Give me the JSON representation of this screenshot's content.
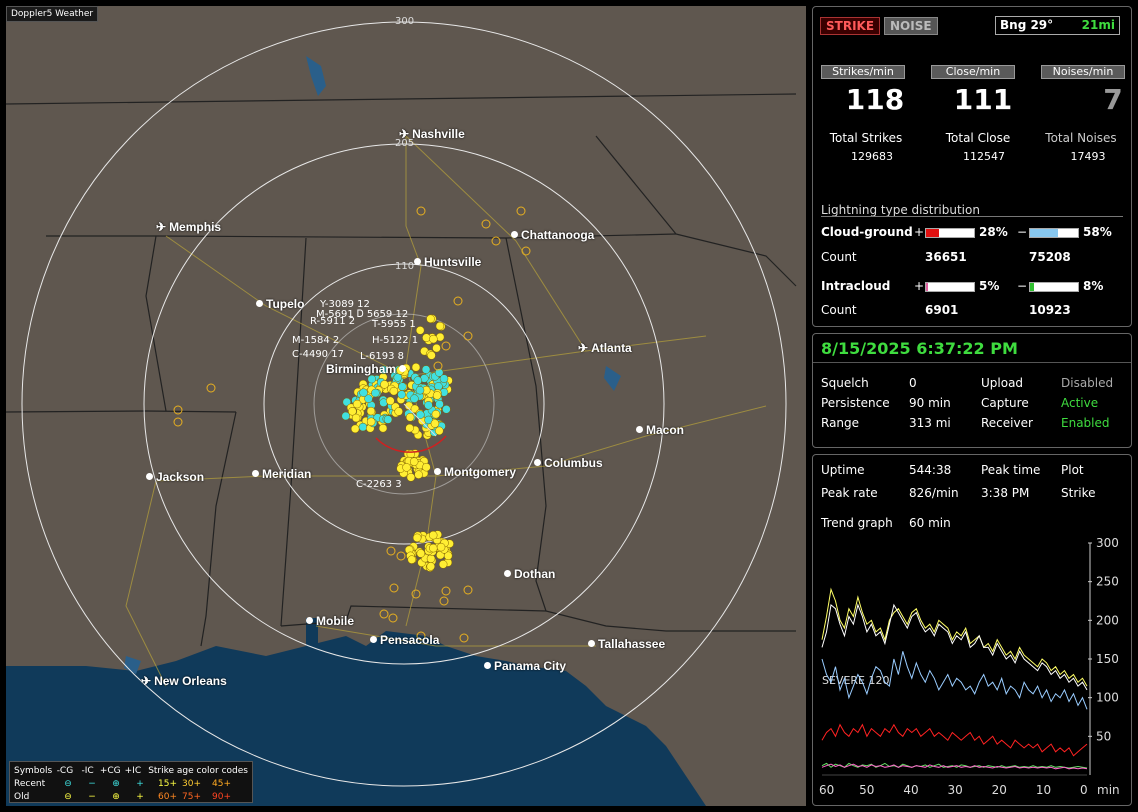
{
  "app_title": "Doppler5 Weather",
  "map": {
    "ring_labels": [
      "300",
      "205",
      "110"
    ],
    "cities": [
      {
        "name": "Nashville",
        "icon": "plane"
      },
      {
        "name": "Memphis",
        "icon": "plane"
      },
      {
        "name": "Chattanooga",
        "icon": "dot"
      },
      {
        "name": "Huntsville",
        "icon": "dot"
      },
      {
        "name": "Tupelo",
        "icon": "dot"
      },
      {
        "name": "Atlanta",
        "icon": "plane"
      },
      {
        "name": "Birmingham",
        "icon": "dot"
      },
      {
        "name": "Macon",
        "icon": "dot"
      },
      {
        "name": "Jackson",
        "icon": "dot"
      },
      {
        "name": "Meridian",
        "icon": "dot"
      },
      {
        "name": "Montgomery",
        "icon": "dot"
      },
      {
        "name": "Columbus",
        "icon": "dot"
      },
      {
        "name": "Dothan",
        "icon": "dot"
      },
      {
        "name": "Mobile",
        "icon": "dot"
      },
      {
        "name": "Pensacola",
        "icon": "dot"
      },
      {
        "name": "Tallahassee",
        "icon": "dot"
      },
      {
        "name": "Panama City",
        "icon": "dot"
      },
      {
        "name": "New Orleans",
        "icon": "plane"
      }
    ],
    "storm_labels": [
      "Y-3089 12",
      "M-5691 Ꭰ 5659 12",
      "R-5911 2",
      "T-5955 1",
      "M-1584 2",
      "H-5122 1",
      "C-4490 17",
      "L-6193 8",
      "C-2263 3"
    ]
  },
  "legend": {
    "row_header": [
      "Symbols",
      "-CG",
      "-IC",
      "+CG",
      "+IC",
      "Strike age color codes"
    ],
    "recent": {
      "label": "Recent",
      "symbols": [
        "⊖",
        "−",
        "⊕",
        "+"
      ],
      "ages": [
        "15+",
        "30+",
        "45+"
      ]
    },
    "old": {
      "label": "Old",
      "symbols": [
        "⊖",
        "−",
        "⊕",
        "+"
      ],
      "ages": [
        "60+",
        "75+",
        "90+"
      ]
    }
  },
  "header": {
    "strike_tab": "STRIKE",
    "noise_tab": "NOISE",
    "bearing": "Bng 29°",
    "range": "21mi"
  },
  "rates": [
    {
      "label": "Strikes/min",
      "value": "118",
      "total_label": "Total Strikes",
      "total": "129683"
    },
    {
      "label": "Close/min",
      "value": "111",
      "total_label": "Total Close",
      "total": "112547"
    },
    {
      "label": "Noises/min",
      "value": "7",
      "total_label": "Total Noises",
      "total": "17493"
    }
  ],
  "distribution": {
    "title": "Lightning type distribution",
    "cloud_ground": {
      "label": "Cloud-ground",
      "pos_pct": "28%",
      "neg_pct": "58%",
      "pos": 0.28,
      "neg": 0.58,
      "count_label": "Count",
      "pos_count": "36651",
      "neg_count": "75208"
    },
    "intracloud": {
      "label": "Intracloud",
      "pos_pct": "5%",
      "neg_pct": "8%",
      "pos": 0.05,
      "neg": 0.08,
      "count_label": "Count",
      "pos_count": "6901",
      "neg_count": "10923"
    },
    "plus": "+",
    "minus": "−"
  },
  "status": {
    "datetime": "8/15/2025 6:37:22 PM",
    "squelch_label": "Squelch",
    "squelch": "0",
    "persistence_label": "Persistence",
    "persistence": "90 min",
    "range_label": "Range",
    "range": "313 mi",
    "upload_label": "Upload",
    "upload": "Disabled",
    "capture_label": "Capture",
    "capture": "Active",
    "receiver_label": "Receiver",
    "receiver": "Enabled"
  },
  "stats": {
    "uptime_label": "Uptime",
    "uptime": "544:38",
    "peak_time_label": "Peak time",
    "peak_time": "3:38 PM",
    "plot_label": "Plot",
    "plot": "Strike",
    "peak_rate_label": "Peak rate",
    "peak_rate": "826/min",
    "trend_label": "Trend graph",
    "trend_window": "60 min"
  },
  "chart_data": {
    "type": "line",
    "title": "",
    "xlabel": "min",
    "x_ticks": [
      "60",
      "50",
      "40",
      "30",
      "20",
      "10",
      "0"
    ],
    "y_ticks": [
      "300",
      "250",
      "200",
      "150",
      "100",
      "50"
    ],
    "xlim": [
      60,
      0
    ],
    "ylim": [
      0,
      300
    ],
    "annotation": "SEVERE 120",
    "threshold": 120,
    "series": [
      {
        "color": "#ffff66",
        "values": [
          175,
          205,
          240,
          225,
          200,
          190,
          215,
          205,
          230,
          210,
          195,
          200,
          185,
          190,
          175,
          200,
          210,
          215,
          205,
          195,
          210,
          215,
          200,
          190,
          195,
          185,
          200,
          195,
          190,
          175,
          185,
          180,
          190,
          170,
          175,
          180,
          165,
          170,
          160,
          175,
          165,
          155,
          160,
          150,
          165,
          155,
          150,
          145,
          140,
          150,
          145,
          135,
          140,
          130,
          135,
          125,
          130,
          120,
          125,
          115
        ]
      },
      {
        "color": "#ffffff",
        "values": [
          165,
          185,
          220,
          215,
          195,
          180,
          205,
          195,
          220,
          205,
          185,
          195,
          180,
          185,
          170,
          195,
          220,
          210,
          200,
          190,
          205,
          210,
          195,
          185,
          190,
          180,
          195,
          190,
          185,
          170,
          180,
          175,
          185,
          165,
          170,
          180,
          165,
          165,
          155,
          170,
          160,
          150,
          155,
          145,
          160,
          150,
          145,
          140,
          135,
          145,
          140,
          130,
          135,
          125,
          130,
          120,
          125,
          115,
          120,
          110
        ]
      },
      {
        "color": "#99ccff",
        "values": [
          150,
          130,
          120,
          140,
          110,
          125,
          100,
          115,
          130,
          120,
          105,
          125,
          140,
          135,
          120,
          115,
          150,
          130,
          160,
          140,
          125,
          145,
          130,
          120,
          135,
          125,
          110,
          120,
          130,
          115,
          125,
          120,
          110,
          115,
          105,
          120,
          130,
          115,
          120,
          110,
          125,
          105,
          115,
          110,
          100,
          120,
          110,
          105,
          115,
          100,
          110,
          95,
          105,
          100,
          110,
          95,
          105,
          90,
          100,
          85
        ]
      },
      {
        "color": "#ff2222",
        "values": [
          45,
          55,
          60,
          50,
          65,
          55,
          50,
          60,
          55,
          65,
          50,
          60,
          55,
          50,
          60,
          55,
          65,
          55,
          50,
          60,
          55,
          60,
          50,
          55,
          60,
          50,
          55,
          50,
          45,
          55,
          50,
          45,
          50,
          55,
          45,
          50,
          40,
          45,
          50,
          40,
          45,
          40,
          35,
          45,
          40,
          35,
          40,
          35,
          40,
          30,
          35,
          40,
          30,
          35,
          30,
          35,
          25,
          30,
          35,
          40
        ]
      },
      {
        "color": "#66dd66",
        "values": [
          12,
          15,
          10,
          14,
          12,
          10,
          15,
          12,
          10,
          13,
          12,
          14,
          10,
          12,
          15,
          11,
          12,
          10,
          14,
          12,
          10,
          12,
          11,
          13,
          10,
          12,
          14,
          10,
          11,
          12,
          10,
          13,
          12,
          10,
          11,
          12,
          10,
          12,
          11,
          10,
          12,
          10,
          11,
          12,
          10,
          11,
          10,
          12,
          10,
          11,
          10,
          12,
          10,
          11,
          10,
          9,
          10,
          11,
          10,
          9
        ]
      },
      {
        "color": "#ff66cc",
        "values": [
          10,
          12,
          14,
          11,
          13,
          10,
          12,
          14,
          11,
          12,
          10,
          13,
          11,
          12,
          10,
          11,
          13,
          10,
          12,
          11,
          10,
          12,
          11,
          10,
          13,
          11,
          10,
          12,
          10,
          11,
          12,
          10,
          11,
          10,
          12,
          10,
          11,
          10,
          9,
          11,
          10,
          9,
          10,
          11,
          9,
          10,
          9,
          10,
          9,
          10,
          9,
          10,
          8,
          9,
          10,
          8,
          9,
          8,
          9,
          8
        ]
      }
    ]
  }
}
